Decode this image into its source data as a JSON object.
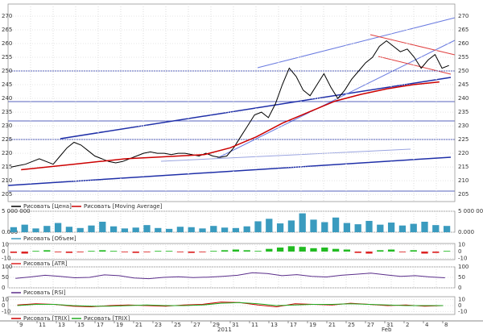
{
  "price": {
    "ylim": [
      202.4,
      274.4
    ],
    "yticks": [
      270,
      265,
      260,
      255,
      250,
      245,
      240,
      235,
      230,
      225,
      220,
      215,
      210,
      205
    ],
    "series": [
      {
        "name": "Рисовать [Цена]",
        "color": "#000000",
        "values": [
          215,
          215.5,
          216,
          217,
          218,
          217,
          216,
          219,
          222,
          224,
          223,
          221,
          219,
          218,
          217,
          216.5,
          217,
          218,
          219,
          220,
          220.5,
          220,
          220,
          219.5,
          220,
          220,
          219.5,
          219,
          220,
          219,
          218.5,
          219,
          222,
          226,
          230,
          234,
          235,
          233,
          238,
          245,
          251,
          248,
          243,
          241,
          245,
          249,
          244,
          240,
          243,
          247,
          250,
          253,
          255,
          259,
          261,
          259,
          257,
          258,
          255,
          251,
          254,
          256,
          251,
          252
        ]
      },
      {
        "name": "Рисовать [Moving Average]",
        "color": "#cc0000",
        "values": [
          214,
          215,
          216,
          217,
          218,
          218.5,
          219,
          219.5,
          222,
          226,
          231,
          235,
          239,
          241.5,
          243.5,
          245,
          246
        ]
      }
    ]
  },
  "volume": {
    "ylim": [
      0,
      5000000
    ],
    "yticks": [
      {
        "value": 5000000,
        "label": "5 000 000"
      },
      {
        "value": 0,
        "label": "0.000"
      }
    ],
    "series": [
      {
        "name": "Рисовать [Объем]",
        "color": "#3a9bbf",
        "values": [
          1200000,
          1800000,
          900000,
          1500000,
          2200000,
          1300000,
          1000000,
          1600000,
          2500000,
          1400000,
          900000,
          1100000,
          1700000,
          1000000,
          800000,
          1300000,
          1200000,
          900000,
          1500000,
          1100000,
          1000000,
          1400000,
          2600000,
          3200000,
          2100000,
          2800000,
          4500000,
          3000000,
          2400000,
          3500000,
          2200000,
          1900000,
          2700000,
          1800000,
          2300000,
          1600000,
          2000000,
          2500000,
          1700000,
          1500000
        ]
      }
    ]
  },
  "atr": {
    "ylim": [
      -12,
      12
    ],
    "yticks": [
      10,
      0,
      -10
    ],
    "up_color": "#22bb22",
    "down_color": "#dd2222",
    "series": [
      {
        "name": "Рисовать [ATR]",
        "color": "#dd2222",
        "values": [
          -2,
          -3,
          1,
          2,
          -1,
          -2,
          -1,
          1,
          2,
          1,
          -1,
          -2,
          -1,
          1,
          1,
          -1,
          -2,
          -1,
          1,
          2,
          3,
          2,
          1,
          4,
          6,
          8,
          7,
          5,
          6,
          4,
          3,
          -2,
          -3,
          2,
          3,
          -1,
          2,
          -3,
          -2,
          1
        ]
      }
    ]
  },
  "rsi": {
    "ylim": [
      0,
      100
    ],
    "yticks": [
      100,
      50,
      0
    ],
    "series": [
      {
        "name": "Рисовать [RSI]",
        "color": "#5a2d8a",
        "values": [
          45,
          52,
          60,
          55,
          48,
          50,
          62,
          58,
          47,
          44,
          50,
          53,
          49,
          51,
          55,
          60,
          72,
          68,
          58,
          63,
          55,
          52,
          60,
          65,
          70,
          62,
          55,
          58,
          52,
          48
        ]
      }
    ]
  },
  "trix": {
    "ylim": [
      -15,
      15
    ],
    "yticks": [
      10,
      0,
      -10
    ],
    "series": [
      {
        "name": "Рисовать [TRIX]",
        "color": "#cc0000",
        "values": [
          1,
          3,
          2,
          -1,
          -2,
          0,
          1,
          0,
          -1,
          1,
          2,
          6,
          5,
          1,
          -2,
          3,
          2,
          1,
          4,
          2,
          0,
          1,
          -1,
          0
        ]
      },
      {
        "name": "Рисовать [TRIX]",
        "color": "#22aa22",
        "values": [
          0,
          2,
          2,
          0,
          -1,
          -1,
          0,
          1,
          0,
          0,
          1,
          4,
          5,
          3,
          0,
          1,
          2,
          2,
          3,
          2,
          1,
          0,
          0,
          0
        ]
      }
    ]
  },
  "dates": {
    "days": [
      "9",
      "11",
      "13",
      "15",
      "17",
      "19",
      "21",
      "23",
      "25",
      "27",
      "29",
      "31",
      "11",
      "13",
      "17",
      "19",
      "21",
      "25",
      "27",
      "31",
      "2",
      "4",
      "8"
    ],
    "months": [
      "2011",
      "Feb"
    ]
  }
}
